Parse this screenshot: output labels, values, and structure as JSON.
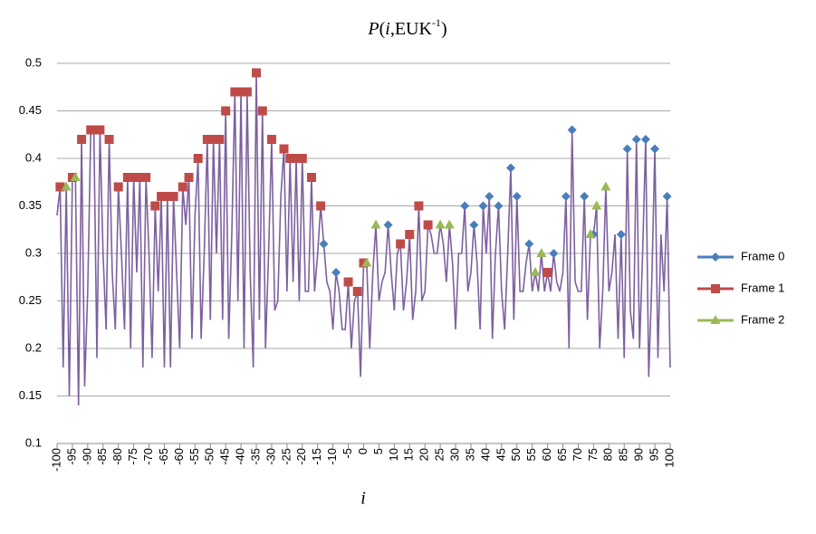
{
  "chart_data": {
    "type": "line",
    "title": [
      "P",
      "(",
      "i",
      ",EUK",
      "-1",
      ")"
    ],
    "x_label": "i",
    "xlim": [
      -100,
      100
    ],
    "xticks": [
      -100,
      -95,
      -90,
      -85,
      -80,
      -75,
      -70,
      -65,
      -60,
      -55,
      -50,
      -45,
      -40,
      -35,
      -30,
      -25,
      -20,
      -15,
      -10,
      -5,
      0,
      5,
      10,
      15,
      20,
      25,
      30,
      35,
      40,
      45,
      50,
      55,
      60,
      65,
      70,
      75,
      80,
      85,
      90,
      95,
      100
    ],
    "ylim": [
      0.1,
      0.5
    ],
    "yticks": [
      0.1,
      0.15,
      0.2,
      0.25,
      0.3,
      0.35,
      0.4,
      0.45,
      0.5
    ],
    "grid": true,
    "legend": "right",
    "series": [
      {
        "color": "#7d60a0",
        "marker": "none",
        "x": [
          -100,
          -99,
          -98,
          -97,
          -96,
          -95,
          -94,
          -93,
          -92,
          -91,
          -90,
          -89,
          -88,
          -87,
          -86,
          -85,
          -84,
          -83,
          -82,
          -81,
          -80,
          -79,
          -78,
          -77,
          -76,
          -75,
          -74,
          -73,
          -72,
          -71,
          -70,
          -69,
          -68,
          -67,
          -66,
          -65,
          -64,
          -63,
          -62,
          -61,
          -60,
          -59,
          -58,
          -57,
          -56,
          -55,
          -54,
          -53,
          -52,
          -51,
          -50,
          -49,
          -48,
          -47,
          -46,
          -45,
          -44,
          -43,
          -42,
          -41,
          -40,
          -39,
          -38,
          -37,
          -36,
          -35,
          -34,
          -33,
          -32,
          -31,
          -30,
          -29,
          -28,
          -27,
          -26,
          -25,
          -24,
          -23,
          -22,
          -21,
          -20,
          -19,
          -18,
          -17,
          -16,
          -15,
          -14,
          -13,
          -12,
          -11,
          -10,
          -9,
          -8,
          -7,
          -6,
          -5,
          -4,
          -3,
          -2,
          -1,
          0,
          1,
          2,
          3,
          4,
          5,
          6,
          7,
          8,
          9,
          10,
          11,
          12,
          13,
          14,
          15,
          16,
          17,
          18,
          19,
          20,
          21,
          22,
          23,
          24,
          25,
          26,
          27,
          28,
          29,
          30,
          31,
          32,
          33,
          34,
          35,
          36,
          37,
          38,
          39,
          40,
          41,
          42,
          43,
          44,
          45,
          46,
          47,
          48,
          49,
          50,
          51,
          52,
          53,
          54,
          55,
          56,
          57,
          58,
          59,
          60,
          61,
          62,
          63,
          64,
          65,
          66,
          67,
          68,
          69,
          70,
          71,
          72,
          73,
          74,
          75,
          76,
          77,
          78,
          79,
          80,
          81,
          82,
          83,
          84,
          85,
          86,
          87,
          88,
          89,
          90,
          91,
          92,
          93,
          94,
          95,
          96,
          97,
          98,
          99,
          100
        ],
        "values": [
          0.34,
          0.37,
          0.18,
          0.37,
          0.15,
          0.38,
          0.38,
          0.14,
          0.42,
          0.16,
          0.26,
          0.43,
          0.43,
          0.19,
          0.43,
          0.3,
          0.22,
          0.42,
          0.28,
          0.22,
          0.37,
          0.3,
          0.22,
          0.38,
          0.2,
          0.38,
          0.28,
          0.38,
          0.18,
          0.38,
          0.3,
          0.19,
          0.35,
          0.26,
          0.36,
          0.18,
          0.36,
          0.18,
          0.36,
          0.28,
          0.2,
          0.37,
          0.33,
          0.38,
          0.21,
          0.34,
          0.4,
          0.21,
          0.3,
          0.42,
          0.23,
          0.42,
          0.3,
          0.42,
          0.23,
          0.45,
          0.21,
          0.32,
          0.47,
          0.25,
          0.47,
          0.2,
          0.47,
          0.28,
          0.18,
          0.49,
          0.23,
          0.45,
          0.2,
          0.3,
          0.42,
          0.24,
          0.25,
          0.36,
          0.41,
          0.26,
          0.4,
          0.27,
          0.4,
          0.25,
          0.4,
          0.26,
          0.26,
          0.38,
          0.26,
          0.3,
          0.35,
          0.31,
          0.27,
          0.26,
          0.22,
          0.28,
          0.26,
          0.22,
          0.22,
          0.27,
          0.2,
          0.25,
          0.26,
          0.17,
          0.29,
          0.29,
          0.2,
          0.28,
          0.33,
          0.25,
          0.27,
          0.28,
          0.33,
          0.28,
          0.24,
          0.3,
          0.31,
          0.24,
          0.27,
          0.32,
          0.23,
          0.26,
          0.35,
          0.25,
          0.26,
          0.33,
          0.32,
          0.3,
          0.3,
          0.33,
          0.31,
          0.27,
          0.33,
          0.29,
          0.22,
          0.3,
          0.3,
          0.35,
          0.26,
          0.28,
          0.33,
          0.29,
          0.22,
          0.35,
          0.3,
          0.36,
          0.21,
          0.3,
          0.35,
          0.26,
          0.22,
          0.3,
          0.39,
          0.23,
          0.36,
          0.26,
          0.26,
          0.29,
          0.31,
          0.26,
          0.28,
          0.26,
          0.3,
          0.26,
          0.28,
          0.26,
          0.3,
          0.27,
          0.26,
          0.28,
          0.36,
          0.2,
          0.43,
          0.27,
          0.26,
          0.26,
          0.36,
          0.23,
          0.32,
          0.32,
          0.35,
          0.2,
          0.26,
          0.37,
          0.26,
          0.28,
          0.32,
          0.21,
          0.32,
          0.19,
          0.41,
          0.24,
          0.21,
          0.42,
          0.2,
          0.3,
          0.42,
          0.17,
          0.27,
          0.41,
          0.19,
          0.32,
          0.26,
          0.36,
          0.18
        ]
      },
      {
        "name": "Frame 0",
        "color": "#4a7ebb",
        "marker": "diamond",
        "x": [
          -13,
          -9,
          8,
          33,
          36,
          39,
          41,
          44,
          48,
          50,
          54,
          62,
          66,
          68,
          72,
          75,
          84,
          86,
          89,
          92,
          95,
          99
        ],
        "values": [
          0.31,
          0.28,
          0.33,
          0.35,
          0.33,
          0.35,
          0.36,
          0.35,
          0.39,
          0.36,
          0.31,
          0.3,
          0.36,
          0.43,
          0.36,
          0.32,
          0.32,
          0.41,
          0.42,
          0.42,
          0.41,
          0.36
        ]
      },
      {
        "name": "Frame 1",
        "color": "#be4b48",
        "marker": "square",
        "x": [
          -99,
          -95,
          -92,
          -89,
          -88,
          -86,
          -83,
          -80,
          -77,
          -75,
          -73,
          -71,
          -68,
          -66,
          -64,
          -62,
          -59,
          -57,
          -54,
          -51,
          -49,
          -47,
          -45,
          -42,
          -40,
          -38,
          -35,
          -33,
          -30,
          -26,
          -24,
          -22,
          -20,
          -17,
          -14,
          -5,
          -2,
          0,
          12,
          15,
          18,
          21,
          60
        ],
        "values": [
          0.37,
          0.38,
          0.42,
          0.43,
          0.43,
          0.43,
          0.42,
          0.37,
          0.38,
          0.38,
          0.38,
          0.38,
          0.35,
          0.36,
          0.36,
          0.36,
          0.37,
          0.38,
          0.4,
          0.42,
          0.42,
          0.42,
          0.45,
          0.47,
          0.47,
          0.47,
          0.49,
          0.45,
          0.42,
          0.41,
          0.4,
          0.4,
          0.4,
          0.38,
          0.35,
          0.27,
          0.26,
          0.29,
          0.31,
          0.32,
          0.35,
          0.33,
          0.28
        ]
      },
      {
        "name": "Frame 2",
        "color": "#98b954",
        "marker": "triangle",
        "x": [
          -97,
          -94,
          1,
          4,
          25,
          28,
          56,
          58,
          74,
          76,
          79
        ],
        "values": [
          0.37,
          0.38,
          0.29,
          0.33,
          0.33,
          0.33,
          0.28,
          0.3,
          0.32,
          0.35,
          0.37
        ]
      }
    ]
  }
}
